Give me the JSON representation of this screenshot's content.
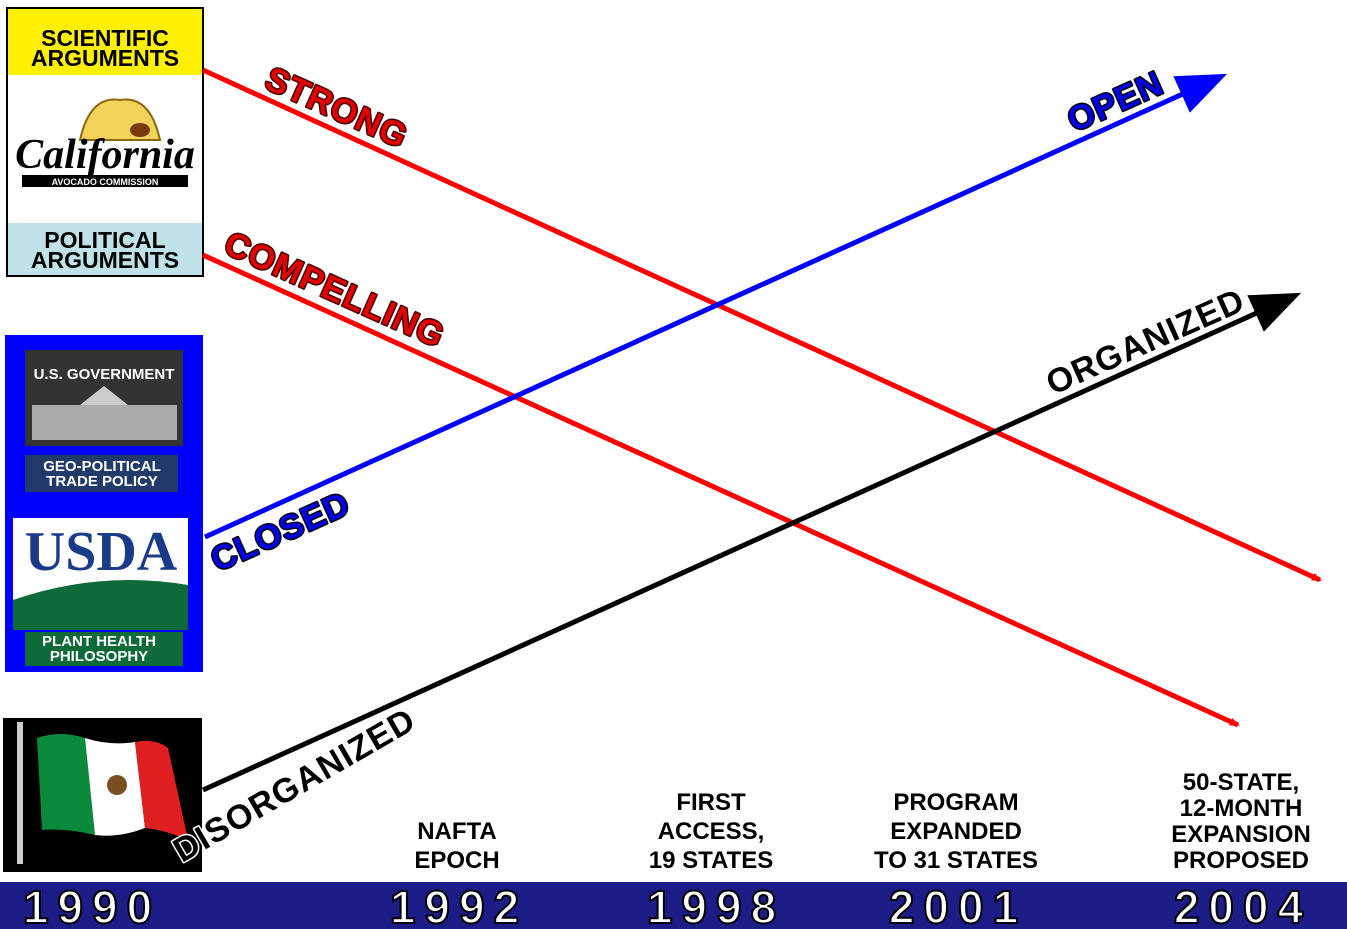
{
  "left_panels": {
    "scientific": [
      "SCIENTIFIC",
      "ARGUMENTS"
    ],
    "logo": {
      "name": "California",
      "subtitle": "AVOCADO COMMISSION"
    },
    "political": [
      "POLITICAL",
      "ARGUMENTS"
    ],
    "government": "U.S. GOVERNMENT",
    "trade_policy": [
      "GEO-POLITICAL",
      "TRADE POLICY"
    ],
    "usda": "USDA",
    "plant_health": [
      "PLANT HEALTH",
      "PHILOSOPHY"
    ]
  },
  "arrows": {
    "strong": "STRONG",
    "compelling": "COMPELLING",
    "open": "OPEN",
    "closed": "CLOSED",
    "organized": "ORGANIZED",
    "disorganized": "DISORGANIZED"
  },
  "timeline": {
    "years": [
      "1990",
      "1992",
      "1998",
      "2001",
      "2004"
    ],
    "events": [
      [
        "NAFTA",
        "EPOCH"
      ],
      [
        "FIRST",
        "ACCESS,",
        "19 STATES"
      ],
      [
        "PROGRAM",
        "EXPANDED",
        "TO 31 STATES"
      ],
      [
        "50-STATE,",
        "12-MONTH",
        "EXPANSION",
        "PROPOSED"
      ]
    ]
  }
}
